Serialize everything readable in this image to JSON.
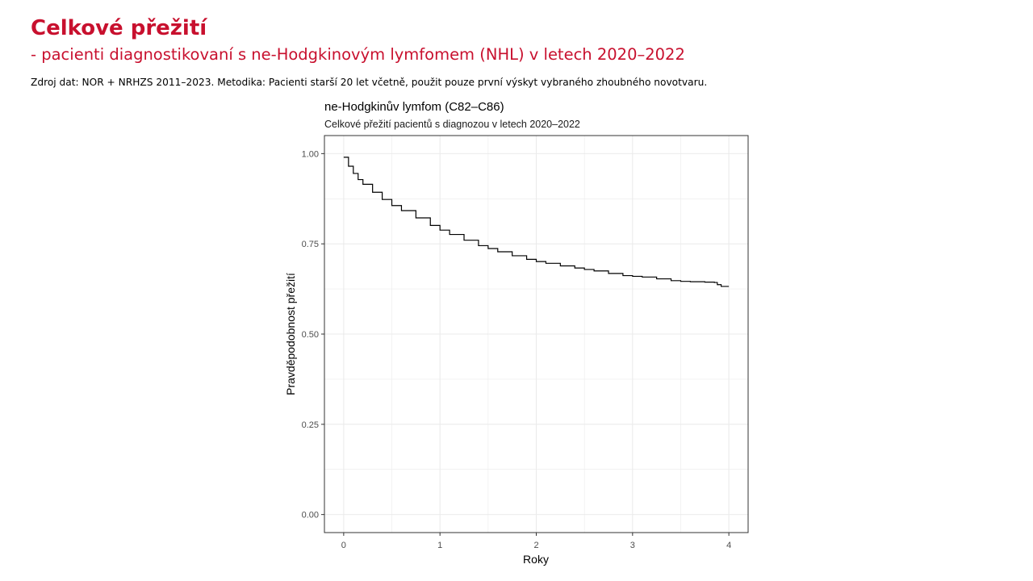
{
  "slide": {
    "title": "Celkové přežití",
    "subtitle": "- pacienti diagnostikovaní s ne-Hodgkinovým lymfomem (NHL) v letech 2020–2022",
    "source": "Zdroj dat: NOR + NRHZS 2011–2023. Metodika: Pacienti starší 20 let včetně, použit pouze první výskyt vybraného zhoubného novotvaru."
  },
  "colors": {
    "title": "#c8102e",
    "curve": "#000000",
    "grid": "#ebebeb",
    "panel_border": "#333333"
  },
  "chart_data": {
    "type": "line",
    "title": "ne-Hodgkinův lymfom (C82–C86)",
    "subtitle": "Celkové přežití pacientů s diagnozou v letech 2020–2022",
    "xlabel": "Roky",
    "ylabel": "Pravděpodobnost přežití",
    "xlim": [
      -0.2,
      4.2
    ],
    "ylim": [
      -0.05,
      1.05
    ],
    "x_ticks": [
      0,
      1,
      2,
      3,
      4
    ],
    "x_tick_labels": [
      "0",
      "1",
      "2",
      "3",
      "4"
    ],
    "y_ticks": [
      0.0,
      0.25,
      0.5,
      0.75,
      1.0
    ],
    "y_tick_labels": [
      "0.00",
      "0.25",
      "0.50",
      "0.75",
      "1.00"
    ],
    "grid": true,
    "legend": "none",
    "step": true,
    "series": [
      {
        "x": [
          0,
          0.05,
          0.1,
          0.15,
          0.2,
          0.3,
          0.4,
          0.5,
          0.6,
          0.75,
          0.9,
          1.0,
          1.1,
          1.25,
          1.4,
          1.5,
          1.6,
          1.75,
          1.9,
          2.0,
          2.1,
          2.25,
          2.4,
          2.5,
          2.6,
          2.75,
          2.9,
          3.0,
          3.1,
          3.25,
          3.4,
          3.5,
          3.6,
          3.75,
          3.85,
          3.88,
          3.92,
          4.0
        ],
        "y": [
          0.99,
          0.965,
          0.945,
          0.928,
          0.915,
          0.893,
          0.873,
          0.856,
          0.842,
          0.822,
          0.801,
          0.788,
          0.776,
          0.76,
          0.745,
          0.737,
          0.728,
          0.717,
          0.707,
          0.701,
          0.696,
          0.689,
          0.683,
          0.679,
          0.675,
          0.668,
          0.662,
          0.66,
          0.658,
          0.653,
          0.648,
          0.646,
          0.645,
          0.644,
          0.643,
          0.637,
          0.632,
          0.632
        ]
      }
    ]
  }
}
